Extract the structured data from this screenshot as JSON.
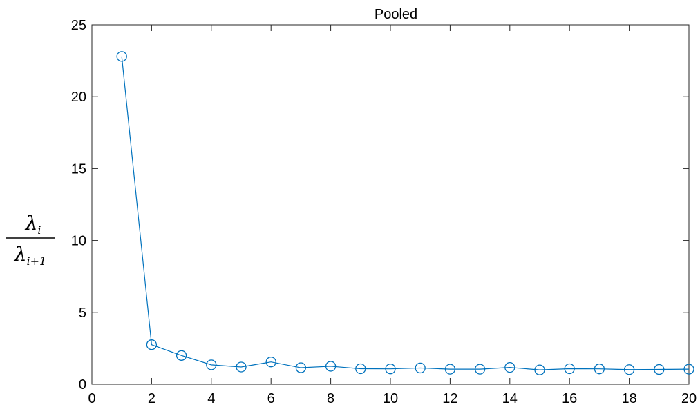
{
  "chart_data": {
    "type": "line",
    "title": "Pooled",
    "xlabel": "",
    "ylabel": {
      "numerator": "λ",
      "numerator_sub": "i",
      "denominator": "λ",
      "denominator_sub": "i+1"
    },
    "xlim": [
      0,
      20
    ],
    "ylim": [
      0,
      25
    ],
    "xticks": [
      "0",
      "2",
      "4",
      "6",
      "8",
      "10",
      "12",
      "14",
      "16",
      "18",
      "20"
    ],
    "yticks": [
      "0",
      "5",
      "10",
      "15",
      "20",
      "25"
    ],
    "grid": false,
    "series": [
      {
        "x": [
          1,
          2,
          3,
          4,
          5,
          6,
          7,
          8,
          9,
          10,
          11,
          12,
          13,
          14,
          15,
          16,
          17,
          18,
          19,
          20
        ],
        "values": [
          22.8,
          2.75,
          2.0,
          1.35,
          1.2,
          1.55,
          1.15,
          1.25,
          1.08,
          1.07,
          1.13,
          1.05,
          1.05,
          1.17,
          1.0,
          1.08,
          1.07,
          1.02,
          1.03,
          1.05
        ],
        "marker": "circle",
        "color": "#0072BD"
      }
    ]
  }
}
